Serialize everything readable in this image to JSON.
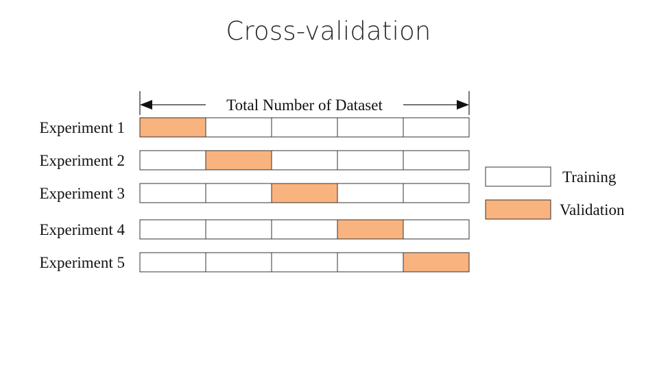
{
  "slide": {
    "title": "Cross-validation"
  },
  "diagram": {
    "span_label": "Total Number of Dataset",
    "fold_count": 5,
    "experiments": [
      {
        "label": "Experiment 1",
        "validation_fold": 1
      },
      {
        "label": "Experiment 2",
        "validation_fold": 2
      },
      {
        "label": "Experiment 3",
        "validation_fold": 3
      },
      {
        "label": "Experiment 4",
        "validation_fold": 4
      },
      {
        "label": "Experiment 5",
        "validation_fold": 5
      }
    ],
    "legend": [
      {
        "label": "Training",
        "color": "#ffffff"
      },
      {
        "label": "Validation",
        "color": "#f8b37f"
      }
    ],
    "colors": {
      "training": "#ffffff",
      "validation": "#f8b37f",
      "stroke": "#333333"
    }
  }
}
